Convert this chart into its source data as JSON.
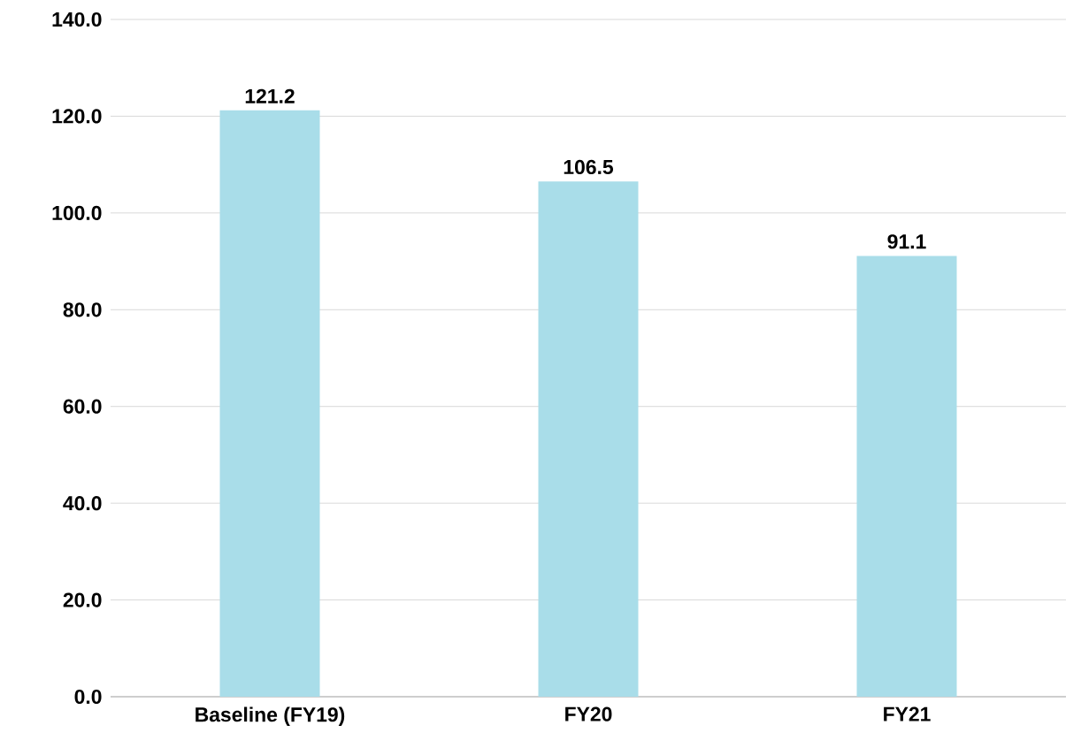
{
  "chart_data": {
    "type": "bar",
    "categories": [
      "Baseline (FY19)",
      "FY20",
      "FY21"
    ],
    "values": [
      121.2,
      106.5,
      91.1
    ],
    "color": "#a9dde9",
    "ylim": [
      0,
      140
    ],
    "yticks": [
      {
        "value": 0,
        "label": "0.0"
      },
      {
        "value": 20,
        "label": "20.0"
      },
      {
        "value": 40,
        "label": "40.0"
      },
      {
        "value": 60,
        "label": "60.0"
      },
      {
        "value": 80,
        "label": "80.0"
      },
      {
        "value": 100,
        "label": "100.0"
      },
      {
        "value": 120,
        "label": "120.0"
      },
      {
        "value": 140,
        "label": "140.0"
      }
    ],
    "grid": "y",
    "data_labels": true
  }
}
